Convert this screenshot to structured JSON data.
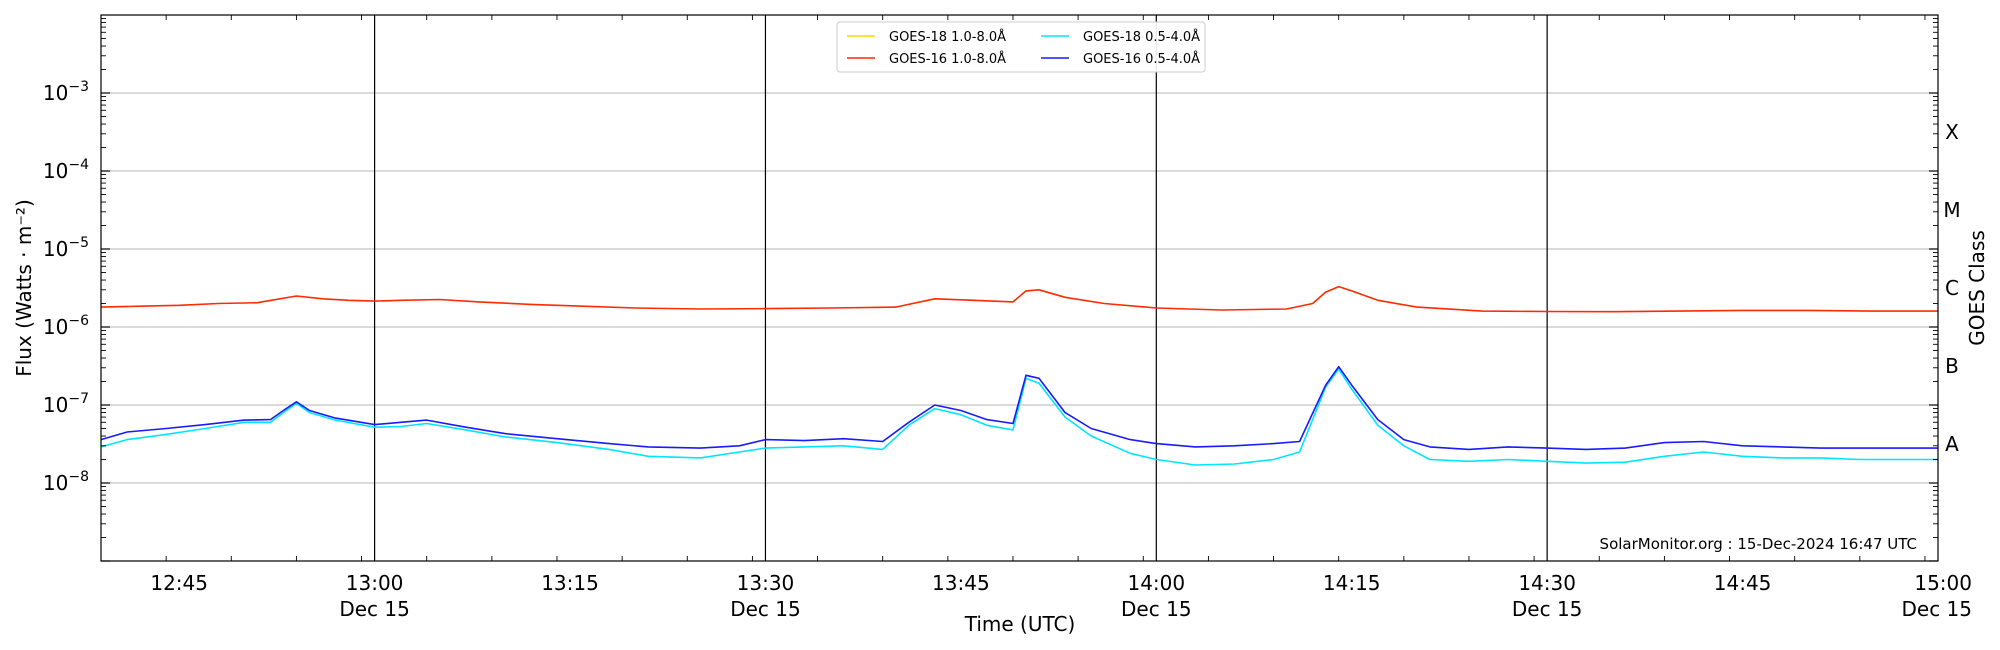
{
  "chart_data": {
    "type": "line",
    "title": "",
    "xlabel": "Time (UTC)",
    "ylabel": "Flux (Watts · m⁻²)",
    "y2label": "GOES Class",
    "yscale": "log",
    "ylim": [
      1e-09,
      0.01
    ],
    "xlim": [
      "12:39",
      "15:00"
    ],
    "x_ticks": [
      {
        "time": "12:45",
        "date": ""
      },
      {
        "time": "13:00",
        "date": "Dec 15"
      },
      {
        "time": "13:15",
        "date": ""
      },
      {
        "time": "13:30",
        "date": "Dec 15"
      },
      {
        "time": "13:45",
        "date": ""
      },
      {
        "time": "14:00",
        "date": "Dec 15"
      },
      {
        "time": "14:15",
        "date": ""
      },
      {
        "time": "14:30",
        "date": "Dec 15"
      },
      {
        "time": "14:45",
        "date": ""
      },
      {
        "time": "15:00",
        "date": "Dec 15"
      }
    ],
    "y_ticks": [
      {
        "value": 1e-08,
        "label_base": "10",
        "label_exp": "−8"
      },
      {
        "value": 1e-07,
        "label_base": "10",
        "label_exp": "−7"
      },
      {
        "value": 1e-06,
        "label_base": "10",
        "label_exp": "−6"
      },
      {
        "value": 1e-05,
        "label_base": "10",
        "label_exp": "−5"
      },
      {
        "value": 0.0001,
        "label_base": "10",
        "label_exp": "−4"
      },
      {
        "value": 0.001,
        "label_base": "10",
        "label_exp": "−3"
      }
    ],
    "goes_classes": [
      {
        "label": "A",
        "value": 1e-08
      },
      {
        "label": "B",
        "value": 1e-07
      },
      {
        "label": "C",
        "value": 1e-06
      },
      {
        "label": "M",
        "value": 1e-05
      },
      {
        "label": "X",
        "value": 0.0001
      }
    ],
    "vertical_lines": [
      "13:00",
      "13:30",
      "14:00",
      "14:30"
    ],
    "grid": "horizontal",
    "legend_position": "top-center",
    "annotation": "SolarMonitor.org : 15-Dec-2024 16:47 UTC",
    "series": [
      {
        "name": "GOES-18 1.0-8.0Å",
        "color": "#ffd700",
        "values": []
      },
      {
        "name": "GOES-16 1.0-8.0Å",
        "color": "#ff2a00",
        "values": [
          [
            "12:39",
            1.8e-06
          ],
          [
            "12:42",
            1.85e-06
          ],
          [
            "12:45",
            1.9e-06
          ],
          [
            "12:48",
            2e-06
          ],
          [
            "12:51",
            2.05e-06
          ],
          [
            "12:54",
            2.5e-06
          ],
          [
            "12:56",
            2.3e-06
          ],
          [
            "12:58",
            2.2e-06
          ],
          [
            "13:00",
            2.15e-06
          ],
          [
            "13:02",
            2.2e-06
          ],
          [
            "13:05",
            2.25e-06
          ],
          [
            "13:08",
            2.1e-06
          ],
          [
            "13:12",
            1.95e-06
          ],
          [
            "13:16",
            1.85e-06
          ],
          [
            "13:20",
            1.75e-06
          ],
          [
            "13:25",
            1.7e-06
          ],
          [
            "13:30",
            1.72e-06
          ],
          [
            "13:35",
            1.75e-06
          ],
          [
            "13:40",
            1.8e-06
          ],
          [
            "13:43",
            2.3e-06
          ],
          [
            "13:46",
            2.2e-06
          ],
          [
            "13:49",
            2.1e-06
          ],
          [
            "13:50",
            2.9e-06
          ],
          [
            "13:51",
            3e-06
          ],
          [
            "13:53",
            2.4e-06
          ],
          [
            "13:56",
            2e-06
          ],
          [
            "14:00",
            1.75e-06
          ],
          [
            "14:05",
            1.65e-06
          ],
          [
            "14:10",
            1.7e-06
          ],
          [
            "14:12",
            2e-06
          ],
          [
            "14:13",
            2.8e-06
          ],
          [
            "14:14",
            3.3e-06
          ],
          [
            "14:15",
            2.9e-06
          ],
          [
            "14:17",
            2.2e-06
          ],
          [
            "14:20",
            1.8e-06
          ],
          [
            "14:25",
            1.6e-06
          ],
          [
            "14:30",
            1.58e-06
          ],
          [
            "14:35",
            1.57e-06
          ],
          [
            "14:40",
            1.6e-06
          ],
          [
            "14:45",
            1.63e-06
          ],
          [
            "14:50",
            1.63e-06
          ],
          [
            "14:55",
            1.6e-06
          ],
          [
            "15:00",
            1.6e-06
          ]
        ]
      },
      {
        "name": "GOES-18 0.5-4.0Å",
        "color": "#00e5ff",
        "values": [
          [
            "12:39",
            2.9e-08
          ],
          [
            "12:41",
            3.6e-08
          ],
          [
            "12:44",
            4.2e-08
          ],
          [
            "12:47",
            5e-08
          ],
          [
            "12:50",
            6e-08
          ],
          [
            "12:52",
            6e-08
          ],
          [
            "12:53",
            8e-08
          ],
          [
            "12:54",
            1.05e-07
          ],
          [
            "12:55",
            8e-08
          ],
          [
            "12:57",
            6.4e-08
          ],
          [
            "13:00",
            5.2e-08
          ],
          [
            "13:02",
            5.3e-08
          ],
          [
            "13:04",
            5.8e-08
          ],
          [
            "13:07",
            4.8e-08
          ],
          [
            "13:10",
            3.9e-08
          ],
          [
            "13:14",
            3.3e-08
          ],
          [
            "13:18",
            2.7e-08
          ],
          [
            "13:21",
            2.2e-08
          ],
          [
            "13:25",
            2.1e-08
          ],
          [
            "13:28",
            2.5e-08
          ],
          [
            "13:30",
            2.8e-08
          ],
          [
            "13:33",
            2.9e-08
          ],
          [
            "13:36",
            3e-08
          ],
          [
            "13:39",
            2.7e-08
          ],
          [
            "13:41",
            5.5e-08
          ],
          [
            "13:43",
            9e-08
          ],
          [
            "13:45",
            7.5e-08
          ],
          [
            "13:47",
            5.5e-08
          ],
          [
            "13:49",
            4.8e-08
          ],
          [
            "13:50",
            2.2e-07
          ],
          [
            "13:51",
            1.9e-07
          ],
          [
            "13:53",
            7e-08
          ],
          [
            "13:55",
            4e-08
          ],
          [
            "13:58",
            2.4e-08
          ],
          [
            "14:00",
            2e-08
          ],
          [
            "14:03",
            1.7e-08
          ],
          [
            "14:06",
            1.75e-08
          ],
          [
            "14:09",
            2e-08
          ],
          [
            "14:11",
            2.5e-08
          ],
          [
            "14:13",
            1.7e-07
          ],
          [
            "14:14",
            2.9e-07
          ],
          [
            "14:15",
            1.6e-07
          ],
          [
            "14:17",
            5.5e-08
          ],
          [
            "14:19",
            3e-08
          ],
          [
            "14:21",
            2e-08
          ],
          [
            "14:24",
            1.9e-08
          ],
          [
            "14:27",
            2e-08
          ],
          [
            "14:30",
            1.9e-08
          ],
          [
            "14:33",
            1.8e-08
          ],
          [
            "14:36",
            1.85e-08
          ],
          [
            "14:39",
            2.2e-08
          ],
          [
            "14:42",
            2.5e-08
          ],
          [
            "14:45",
            2.2e-08
          ],
          [
            "14:48",
            2.1e-08
          ],
          [
            "14:51",
            2.1e-08
          ],
          [
            "14:54",
            2e-08
          ],
          [
            "14:57",
            2e-08
          ],
          [
            "15:00",
            2e-08
          ]
        ]
      },
      {
        "name": "GOES-16 0.5-4.0Å",
        "color": "#1a1aff",
        "values": [
          [
            "12:39",
            3.6e-08
          ],
          [
            "12:41",
            4.5e-08
          ],
          [
            "12:44",
            5e-08
          ],
          [
            "12:47",
            5.6e-08
          ],
          [
            "12:50",
            6.4e-08
          ],
          [
            "12:52",
            6.5e-08
          ],
          [
            "12:53",
            8.5e-08
          ],
          [
            "12:54",
            1.1e-07
          ],
          [
            "12:55",
            8.5e-08
          ],
          [
            "12:57",
            6.8e-08
          ],
          [
            "13:00",
            5.6e-08
          ],
          [
            "13:02",
            6e-08
          ],
          [
            "13:04",
            6.4e-08
          ],
          [
            "13:07",
            5.2e-08
          ],
          [
            "13:10",
            4.3e-08
          ],
          [
            "13:14",
            3.7e-08
          ],
          [
            "13:18",
            3.2e-08
          ],
          [
            "13:21",
            2.9e-08
          ],
          [
            "13:25",
            2.8e-08
          ],
          [
            "13:28",
            3e-08
          ],
          [
            "13:30",
            3.6e-08
          ],
          [
            "13:33",
            3.5e-08
          ],
          [
            "13:36",
            3.7e-08
          ],
          [
            "13:39",
            3.4e-08
          ],
          [
            "13:41",
            6e-08
          ],
          [
            "13:43",
            1e-07
          ],
          [
            "13:45",
            8.5e-08
          ],
          [
            "13:47",
            6.5e-08
          ],
          [
            "13:49",
            5.8e-08
          ],
          [
            "13:50",
            2.4e-07
          ],
          [
            "13:51",
            2.2e-07
          ],
          [
            "13:53",
            8e-08
          ],
          [
            "13:55",
            5e-08
          ],
          [
            "13:58",
            3.6e-08
          ],
          [
            "14:00",
            3.2e-08
          ],
          [
            "14:03",
            2.9e-08
          ],
          [
            "14:06",
            3e-08
          ],
          [
            "14:09",
            3.2e-08
          ],
          [
            "14:11",
            3.4e-08
          ],
          [
            "14:13",
            1.8e-07
          ],
          [
            "14:14",
            3.1e-07
          ],
          [
            "14:15",
            1.8e-07
          ],
          [
            "14:17",
            6.5e-08
          ],
          [
            "14:19",
            3.6e-08
          ],
          [
            "14:21",
            2.9e-08
          ],
          [
            "14:24",
            2.7e-08
          ],
          [
            "14:27",
            2.9e-08
          ],
          [
            "14:30",
            2.8e-08
          ],
          [
            "14:33",
            2.7e-08
          ],
          [
            "14:36",
            2.8e-08
          ],
          [
            "14:39",
            3.3e-08
          ],
          [
            "14:42",
            3.4e-08
          ],
          [
            "14:45",
            3e-08
          ],
          [
            "14:48",
            2.9e-08
          ],
          [
            "14:51",
            2.8e-08
          ],
          [
            "14:54",
            2.8e-08
          ],
          [
            "14:57",
            2.8e-08
          ],
          [
            "15:00",
            2.8e-08
          ]
        ]
      }
    ]
  }
}
